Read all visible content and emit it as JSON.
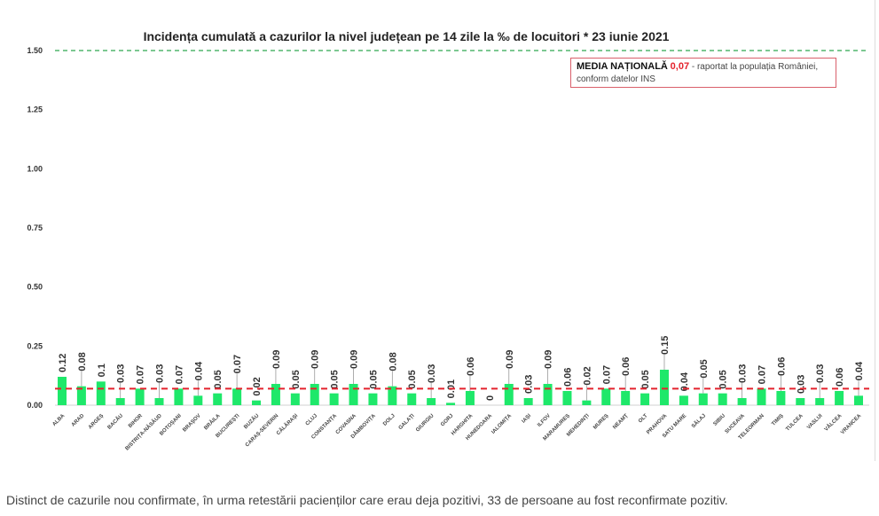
{
  "chart_data": {
    "type": "bar",
    "title": "Incidența cumulată a cazurilor la nivel județean pe 14 zile la ‰ de locuitori *  23 iunie 2021",
    "categories": [
      "ALBA",
      "ARAD",
      "ARGEȘ",
      "BACĂU",
      "BIHOR",
      "BISTRIȚA-NĂSĂUD",
      "BOTOȘANI",
      "BRAȘOV",
      "BRĂILA",
      "BUCUREȘTI",
      "BUZĂU",
      "CARAȘ-SEVERIN",
      "CĂLĂRAȘI",
      "CLUJ",
      "CONSTANȚA",
      "COVASNA",
      "DÂMBOVIȚA",
      "DOLJ",
      "GALAȚI",
      "GIURGIU",
      "GORJ",
      "HARGHITA",
      "HUNEDOARA",
      "IALOMIȚA",
      "IAȘI",
      "ILFOV",
      "MARAMUREȘ",
      "MEHEDINȚI",
      "MUREȘ",
      "NEAMȚ",
      "OLT",
      "PRAHOVA",
      "SATU MARE",
      "SĂLAJ",
      "SIBIU",
      "SUCEAVA",
      "TELEORMAN",
      "TIMIȘ",
      "TULCEA",
      "VASLUI",
      "VÂLCEA",
      "VRANCEA"
    ],
    "values": [
      0.12,
      0.08,
      0.1,
      0.03,
      0.07,
      0.03,
      0.07,
      0.04,
      0.05,
      0.07,
      0.02,
      0.09,
      0.05,
      0.09,
      0.05,
      0.09,
      0.05,
      0.08,
      0.05,
      0.03,
      0.01,
      0.06,
      0,
      0.09,
      0.03,
      0.09,
      0.06,
      0.02,
      0.07,
      0.06,
      0.05,
      0.15,
      0.04,
      0.05,
      0.05,
      0.03,
      0.07,
      0.06,
      0.03,
      0.03,
      0.06,
      0.04
    ],
    "value_labels": [
      "0.12",
      "0.08",
      "0.1",
      "0.03",
      "0.07",
      "0.03",
      "0.07",
      "0.04",
      "0.05",
      "0.07",
      "0.02",
      "0.09",
      "0.05",
      "0.09",
      "0.05",
      "0.09",
      "0.05",
      "0.08",
      "0.05",
      "0.03",
      "0.01",
      "0.06",
      "0",
      "0.09",
      "0.03",
      "0.09",
      "0.06",
      "0.02",
      "0.07",
      "0.06",
      "0.05",
      "0.15",
      "0.04",
      "0.05",
      "0.05",
      "0.03",
      "0.07",
      "0.06",
      "0.03",
      "0.03",
      "0.06",
      "0.04"
    ],
    "yticks": [
      "0.00",
      "0.25",
      "0.50",
      "0.75",
      "1.00",
      "1.25",
      "1.50"
    ],
    "ylim": [
      0,
      1.5
    ],
    "threshold_line": 1.5,
    "national_average": 0.07,
    "xlabel": "",
    "ylabel": "",
    "colors": {
      "bar": "#1ee86a",
      "average": "#e4232d",
      "threshold": "#2fa84f"
    }
  },
  "legend": {
    "label": "MEDIA NAȚIONALĂ",
    "value": "0,07",
    "text1": " - raportat la populația României,",
    "text2": "conform datelor INS"
  },
  "caption": "Distinct de cazurile nou confirmate, în urma retestării pacienților care erau deja pozitivi, 33 de persoane au fost reconfirmate pozitiv."
}
